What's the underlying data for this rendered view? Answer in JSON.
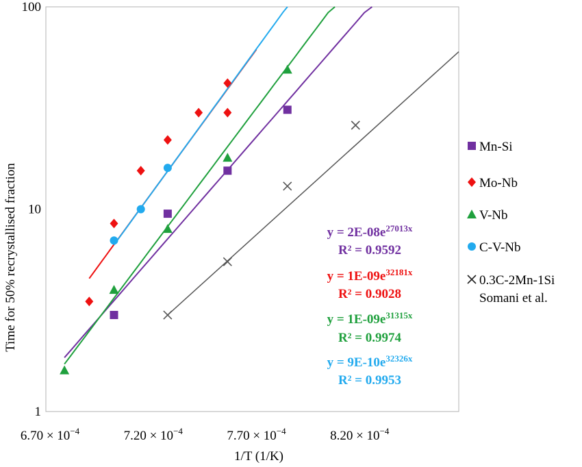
{
  "chart_data": {
    "type": "scatter",
    "title": "",
    "xlabel": "1/T (1/K)",
    "ylabel": "Time for 50% recrystallised fraction",
    "xlim": [
      0.00067,
      0.00087
    ],
    "ylim": [
      1,
      100
    ],
    "yscale": "log",
    "x_ticks": [
      0.00067,
      0.00072,
      0.00077,
      0.00082
    ],
    "x_tick_labels": [
      {
        "base": "6.70 × 10",
        "exp": "−4"
      },
      {
        "base": "7.20 × 10",
        "exp": "−4"
      },
      {
        "base": "7.70 × 10",
        "exp": "−4"
      },
      {
        "base": "8.20 × 10",
        "exp": "−4"
      }
    ],
    "y_ticks": [
      1,
      10,
      100
    ],
    "y_tick_labels": [
      "1",
      "10",
      "100"
    ],
    "grid": false,
    "legend_position": "right",
    "series": [
      {
        "name": "Mn-Si",
        "marker": "square",
        "color": "#7030A0",
        "x": [
          0.000703,
          0.000729,
          0.000758,
          0.000787
        ],
        "y": [
          3.0,
          9.5,
          15.5,
          31
        ],
        "fit": {
          "a": 2e-08,
          "b": 27013,
          "x_range": [
            0.000679,
            0.000828
          ]
        },
        "equation": {
          "prefix": "y = 2E-08e",
          "exp": "27013x"
        },
        "r2": "R² = 0.9592"
      },
      {
        "name": "Mo-Nb",
        "marker": "diamond",
        "color": "#EE1111",
        "x": [
          0.000691,
          0.000703,
          0.000716,
          0.000729,
          0.000744,
          0.000758,
          0.000758
        ],
        "y": [
          3.5,
          8.5,
          15.5,
          22,
          30,
          42,
          30
        ],
        "fit": {
          "a": 1e-09,
          "b": 32181,
          "x_range": [
            0.000691,
            0.000772
          ]
        },
        "equation": {
          "prefix": "y = 1E-09e",
          "exp": "32181x"
        },
        "r2": "R² = 0.9028"
      },
      {
        "name": "V-Nb",
        "marker": "triangle",
        "color": "#1FA03D",
        "x": [
          0.000679,
          0.000703,
          0.000729,
          0.000758,
          0.000787
        ],
        "y": [
          1.6,
          4.0,
          8.0,
          18,
          49
        ],
        "fit": {
          "a": 1e-09,
          "b": 31315,
          "x_range": [
            0.000679,
            0.00081
          ]
        },
        "equation": {
          "prefix": "y = 1E-09e",
          "exp": "31315x"
        },
        "r2": "R² = 0.9974"
      },
      {
        "name": "C-V-Nb",
        "marker": "circle",
        "color": "#22AAEE",
        "x": [
          0.000703,
          0.000716,
          0.000729
        ],
        "y": [
          7.0,
          10,
          16
        ],
        "fit": {
          "a": 9e-10,
          "b": 32326,
          "x_range": [
            0.000703,
            0.000787
          ]
        },
        "equation": {
          "prefix": "y = 9E-10e",
          "exp": "32326x"
        },
        "r2": "R² = 0.9953"
      },
      {
        "name": "0.3C-2Mn-1Si",
        "name_line2": "Somani et al.",
        "marker": "cross",
        "color": "#000000",
        "line_color": "#555555",
        "x": [
          0.000729,
          0.000758,
          0.000787,
          0.00082
        ],
        "y": [
          3.0,
          5.5,
          13,
          26
        ],
        "fit_points": {
          "x": [
            0.000729,
            0.00087
          ],
          "y": [
            3.0,
            60
          ]
        }
      }
    ]
  }
}
